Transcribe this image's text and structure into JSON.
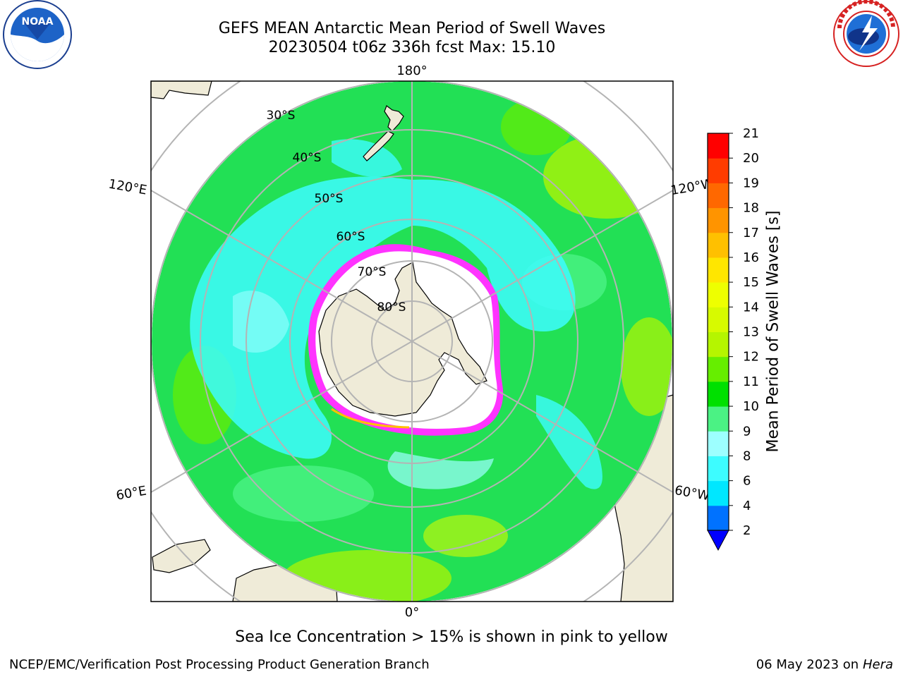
{
  "title_line1": "GEFS MEAN Antarctic Mean Period of Swell Waves",
  "title_line2": "20230504 t06z 336h fcst   Max: 15.10",
  "logos": {
    "left": {
      "icon": "noaa-logo",
      "text": "NOAA"
    },
    "right": {
      "icon": "nws-logo",
      "ring_text": "NATIONAL WEATHER SERVICE"
    }
  },
  "map": {
    "projection": "south-polar-stereographic",
    "longitude_labels": {
      "top": "180°",
      "bottom": "0°",
      "upper_left": "120°E",
      "upper_right": "120°W",
      "lower_left": "60°E",
      "lower_right": "60°W"
    },
    "latitude_labels": [
      "30°S",
      "40°S",
      "50°S",
      "60°S",
      "70°S",
      "80°S"
    ],
    "colors": {
      "land": "#efebd8",
      "ice_edge": "#ff33ff",
      "ice_inner": "#ffffff",
      "grid": "#b4b4b4",
      "dominant_field": "#22e055"
    }
  },
  "colorbar": {
    "label": "Mean Period of Swell Waves [s]",
    "ticks": [
      "2",
      "4",
      "6",
      "8",
      "9",
      "10",
      "11",
      "12",
      "13",
      "14",
      "15",
      "16",
      "17",
      "18",
      "19",
      "20",
      "21"
    ],
    "colors": [
      "#0072ff",
      "#00e7ff",
      "#3dfcff",
      "#9dffff",
      "#4bf284",
      "#00e000",
      "#66ee00",
      "#b5f500",
      "#d7fa00",
      "#eeff00",
      "#ffe600",
      "#ffc000",
      "#ff9400",
      "#ff6800",
      "#ff3c00",
      "#ff0000"
    ],
    "under_color": "#0000ff"
  },
  "ice_note": "Sea Ice Concentration > 15% is shown in pink to yellow",
  "footer_left": "NCEP/EMC/Verification Post Processing Product Generation Branch",
  "footer_date": "06 May 2023 on",
  "footer_host": "Hera"
}
